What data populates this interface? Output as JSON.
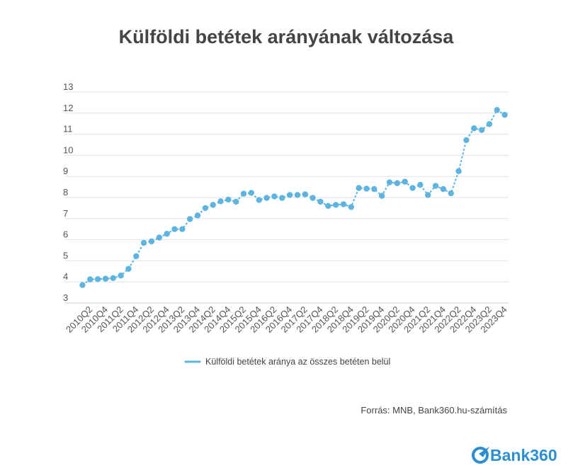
{
  "chart_data": {
    "type": "line",
    "title": "Külföldi betétek arányának változása",
    "source": "Forrás: MNB, Bank360.hu-számítás",
    "ylim": [
      3,
      13
    ],
    "yticks": [
      3,
      4,
      5,
      6,
      7,
      8,
      9,
      10,
      11,
      12,
      13
    ],
    "grid": true,
    "legend_position": "bottom",
    "x": [
      "2010Q1",
      "2010Q2",
      "2010Q3",
      "2010Q4",
      "2011Q1",
      "2011Q2",
      "2011Q3",
      "2011Q4",
      "2012Q1",
      "2012Q2",
      "2012Q3",
      "2012Q4",
      "2013Q1",
      "2013Q2",
      "2013Q3",
      "2013Q4",
      "2014Q1",
      "2014Q2",
      "2014Q3",
      "2014Q4",
      "2015Q1",
      "2015Q2",
      "2015Q3",
      "2015Q4",
      "2016Q1",
      "2016Q2",
      "2016Q3",
      "2016Q4",
      "2017Q1",
      "2017Q2",
      "2017Q3",
      "2017Q4",
      "2018Q1",
      "2018Q2",
      "2018Q3",
      "2018Q4",
      "2019Q1",
      "2019Q2",
      "2019Q3",
      "2019Q4",
      "2020Q1",
      "2020Q2",
      "2020Q3",
      "2020Q4",
      "2021Q1",
      "2021Q2",
      "2021Q3",
      "2021Q4",
      "2022Q1",
      "2022Q2",
      "2022Q3",
      "2022Q4",
      "2023Q1",
      "2023Q2",
      "2023Q3",
      "2023Q4"
    ],
    "xticks": [
      "2010Q2",
      "2010Q4",
      "2011Q2",
      "2011Q4",
      "2012Q2",
      "2012Q4",
      "2013Q2",
      "2013Q4",
      "2014Q2",
      "2014Q4",
      "2015Q2",
      "2015Q4",
      "2016Q2",
      "2016Q4",
      "2017Q2",
      "2017Q4",
      "2018Q2",
      "2018Q4",
      "2019Q2",
      "2019Q4",
      "2020Q2",
      "2020Q4",
      "2021Q2",
      "2021Q4",
      "2022Q2",
      "2022Q4",
      "2023Q2",
      "2023Q4"
    ],
    "series": [
      {
        "name": "Külföldi betétek aránya az összes betéten belül",
        "color": "#5DB4E0",
        "values": [
          3.85,
          4.12,
          4.13,
          4.15,
          4.18,
          4.3,
          4.62,
          5.22,
          5.85,
          5.92,
          6.1,
          6.28,
          6.5,
          6.5,
          6.98,
          7.15,
          7.5,
          7.65,
          7.82,
          7.9,
          7.8,
          8.18,
          8.22,
          7.88,
          7.98,
          8.05,
          7.98,
          8.12,
          8.12,
          8.15,
          7.98,
          7.8,
          7.6,
          7.65,
          7.68,
          7.55,
          8.45,
          8.42,
          8.4,
          8.08,
          8.72,
          8.68,
          8.75,
          8.45,
          8.6,
          8.12,
          8.55,
          8.4,
          8.2,
          9.25,
          10.72,
          11.28,
          11.2,
          11.48,
          12.15,
          11.92
        ]
      }
    ]
  },
  "logo": {
    "name": "Bank360",
    "brand_color": "#2D8FD1"
  }
}
